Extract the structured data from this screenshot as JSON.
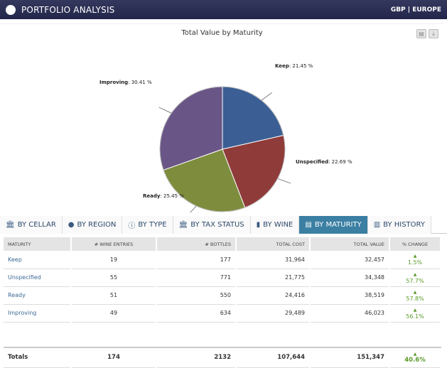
{
  "header": {
    "title": "PORTFOLIO ANALYSIS",
    "currency_region": "GBP | EUROPE"
  },
  "chart_data": {
    "type": "pie",
    "title": "Total Value by Maturity",
    "slices": [
      {
        "label": "Keep",
        "value": 21.45,
        "color": "#3b5f94"
      },
      {
        "label": "Unspecified",
        "value": 22.69,
        "color": "#8f3b3a"
      },
      {
        "label": "Ready",
        "value": 25.45,
        "color": "#7d8d3d"
      },
      {
        "label": "Improving",
        "value": 30.41,
        "color": "#6a5686"
      }
    ],
    "slice_labels": [
      "Keep",
      "Unspecified",
      "Ready",
      "Improving"
    ],
    "slice_texts": [
      ": 21.45 %",
      ": 22.69 %",
      ": 25.45 %",
      ": 30.41 %"
    ]
  },
  "chart_tools": {
    "print_icon": "printer-icon",
    "download_icon": "download-icon"
  },
  "tabs": [
    {
      "label": "BY CELLAR",
      "icon": "🏛"
    },
    {
      "label": "BY REGION",
      "icon": "●"
    },
    {
      "label": "BY TYPE",
      "icon": "ⓘ"
    },
    {
      "label": "BY TAX STATUS",
      "icon": "🏛"
    },
    {
      "label": "BY WINE",
      "icon": "▮"
    },
    {
      "label": "BY MATURITY",
      "icon": "▤",
      "active": true
    },
    {
      "label": "BY HISTORY",
      "icon": "▥"
    }
  ],
  "table": {
    "columns": [
      "MATURITY",
      "# WINE ENTRIES",
      "# BOTTLES",
      "TOTAL COST",
      "TOTAL VALUE",
      "% CHANGE"
    ],
    "rows": [
      [
        "Keep",
        "19",
        "177",
        "31,964",
        "32,457",
        "1.5%"
      ],
      [
        "Unspecified",
        "55",
        "771",
        "21,775",
        "34,348",
        "57.7%"
      ],
      [
        "Ready",
        "51",
        "550",
        "24,416",
        "38,519",
        "57.8%"
      ],
      [
        "Improving",
        "49",
        "634",
        "29,489",
        "46,023",
        "56.1%"
      ]
    ],
    "totals": [
      "Totals",
      "174",
      "2132",
      "107,644",
      "151,347",
      "40.6%"
    ],
    "up_arrow": "▲"
  }
}
